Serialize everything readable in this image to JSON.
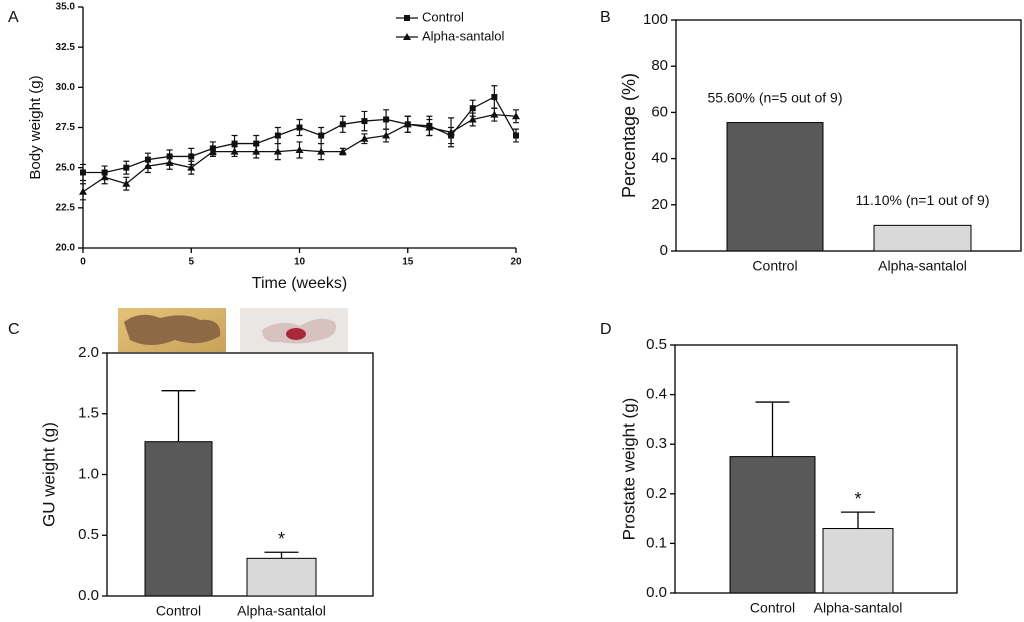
{
  "chart_data": [
    {
      "type": "line",
      "panel": "A",
      "x_label": "Time (weeks)",
      "y_label": "Body weight (g)",
      "x": [
        0,
        1,
        2,
        3,
        4,
        5,
        6,
        7,
        8,
        9,
        10,
        11,
        12,
        13,
        14,
        15,
        16,
        17,
        18,
        19,
        20
      ],
      "series": [
        {
          "name": "Control",
          "color": "#111111",
          "marker": "square",
          "values": [
            24.7,
            24.7,
            25.0,
            25.5,
            25.7,
            25.7,
            26.2,
            26.5,
            26.5,
            27.0,
            27.5,
            27.0,
            27.7,
            27.9,
            28.0,
            27.7,
            27.6,
            27.0,
            28.7,
            29.4,
            27.0
          ],
          "errors": [
            0.5,
            0.4,
            0.4,
            0.4,
            0.4,
            0.5,
            0.4,
            0.5,
            0.5,
            0.5,
            0.5,
            0.5,
            0.5,
            0.6,
            0.6,
            0.5,
            0.6,
            0.5,
            0.5,
            0.7,
            0.4
          ]
        },
        {
          "name": "Alpha-santalol",
          "color": "#111111",
          "marker": "triangle",
          "values": [
            23.5,
            24.4,
            24.0,
            25.1,
            25.3,
            25.0,
            26.0,
            26.0,
            26.0,
            26.0,
            26.1,
            26.0,
            26.0,
            26.8,
            27.0,
            27.7,
            27.5,
            27.2,
            28.0,
            28.3,
            28.2
          ],
          "errors": [
            0.5,
            0.4,
            0.4,
            0.4,
            0.4,
            0.4,
            0.3,
            0.3,
            0.4,
            0.5,
            0.5,
            0.5,
            0.2,
            0.3,
            0.4,
            0.5,
            0.5,
            0.9,
            0.4,
            0.4,
            0.4
          ]
        }
      ],
      "xlim": [
        0,
        20
      ],
      "xticks": [
        0,
        5,
        10,
        15,
        20
      ],
      "ylim": [
        20,
        35
      ],
      "yticks": [
        {
          "value": 20,
          "label": "20.0"
        },
        {
          "value": 22.5,
          "label": "22.5"
        },
        {
          "value": 25,
          "label": "25.0"
        },
        {
          "value": 27.5,
          "label": "27.5"
        },
        {
          "value": 30,
          "label": "30.0"
        },
        {
          "value": 32.5,
          "label": "32.5"
        },
        {
          "value": 35,
          "label": "35.0"
        }
      ],
      "legend": "upper-right"
    },
    {
      "type": "bar",
      "panel": "B",
      "y_label": "Percentage (%)",
      "categories": [
        "Control",
        "Alpha-santalol"
      ],
      "values": [
        55.6,
        11.1
      ],
      "value_labels": [
        "55.60% (n=5 out of 9)",
        "11.10% (n=1 out of 9)"
      ],
      "colors": [
        "#595959",
        "#d9d9d9"
      ],
      "ylim": [
        0,
        100
      ],
      "yticks": [
        0,
        20,
        40,
        60,
        80,
        100
      ]
    },
    {
      "type": "bar",
      "panel": "C",
      "y_label": "GU weight (g)",
      "categories": [
        "Control",
        "Alpha-santalol"
      ],
      "values": [
        1.27,
        0.31
      ],
      "errors": [
        0.42,
        0.05
      ],
      "significance": [
        null,
        "*"
      ],
      "colors": [
        "#595959",
        "#d9d9d9"
      ],
      "ylim": [
        0,
        2
      ],
      "yticks": [
        {
          "value": 0,
          "label": "0.0"
        },
        0.5,
        {
          "value": 1,
          "label": "1.0"
        },
        1.5,
        {
          "value": 2,
          "label": "2.0"
        }
      ]
    },
    {
      "type": "bar",
      "panel": "D",
      "y_label": "Prostate weight (g)",
      "categories": [
        "Control",
        "Alpha-santalol"
      ],
      "values": [
        0.275,
        0.13
      ],
      "errors": [
        0.11,
        0.033
      ],
      "significance": [
        null,
        "*"
      ],
      "colors": [
        "#595959",
        "#d9d9d9"
      ],
      "ylim": [
        0,
        0.5
      ],
      "yticks": [
        {
          "value": 0,
          "label": "0.0"
        },
        0.1,
        0.2,
        0.3,
        0.4,
        0.5
      ]
    }
  ]
}
